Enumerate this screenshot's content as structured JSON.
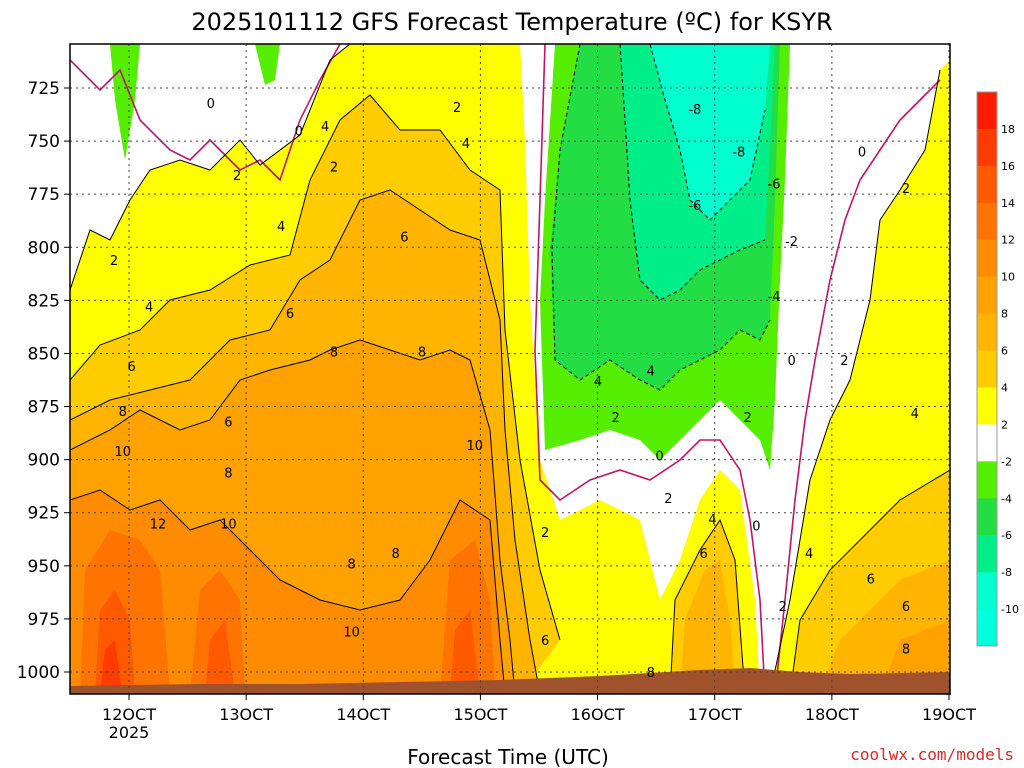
{
  "chart_data": {
    "type": "heatmap",
    "title": "2025101112 GFS Forecast Temperature (ºC) for KSYR",
    "xlabel": "Forecast Time (UTC)",
    "ylabel": "",
    "x_ticks": [
      "12OCT",
      "13OCT",
      "14OCT",
      "15OCT",
      "16OCT",
      "17OCT",
      "18OCT",
      "19OCT"
    ],
    "x_year_label": "2025",
    "y_ticks": [
      725,
      750,
      775,
      800,
      825,
      850,
      875,
      900,
      925,
      950,
      975,
      1000
    ],
    "ylim": [
      1000,
      700
    ],
    "grid": true,
    "colorbar": {
      "levels": [
        18,
        16,
        14,
        12,
        10,
        8,
        6,
        4,
        2,
        -2,
        -4,
        -6,
        -8,
        -10
      ],
      "colors": [
        "#ff1a00",
        "#ff3b00",
        "#ff5a00",
        "#ff7300",
        "#ff8c00",
        "#ffa200",
        "#ffb400",
        "#ffcc00",
        "#ffff00",
        "#ffffff",
        "#55ee00",
        "#22dd44",
        "#00ee88",
        "#00ffcc",
        "#00ffdd"
      ],
      "placement": "right"
    },
    "contour_labels": [
      {
        "text": "0",
        "x": 0.16,
        "p": 732
      },
      {
        "text": "0",
        "x": 0.26,
        "p": 745
      },
      {
        "text": "2",
        "x": 0.19,
        "p": 766
      },
      {
        "text": "4",
        "x": 0.29,
        "p": 743
      },
      {
        "text": "2",
        "x": 0.3,
        "p": 762
      },
      {
        "text": "4",
        "x": 0.24,
        "p": 790
      },
      {
        "text": "2",
        "x": 0.05,
        "p": 806
      },
      {
        "text": "2",
        "x": 0.44,
        "p": 734
      },
      {
        "text": "4",
        "x": 0.45,
        "p": 751
      },
      {
        "text": "6",
        "x": 0.38,
        "p": 795
      },
      {
        "text": "6",
        "x": 0.25,
        "p": 831
      },
      {
        "text": "4",
        "x": 0.09,
        "p": 828
      },
      {
        "text": "6",
        "x": 0.07,
        "p": 856
      },
      {
        "text": "8",
        "x": 0.3,
        "p": 849
      },
      {
        "text": "8",
        "x": 0.4,
        "p": 849
      },
      {
        "text": "6",
        "x": 0.18,
        "p": 882
      },
      {
        "text": "8",
        "x": 0.06,
        "p": 877
      },
      {
        "text": "10",
        "x": 0.06,
        "p": 896
      },
      {
        "text": "8",
        "x": 0.18,
        "p": 906
      },
      {
        "text": "10",
        "x": 0.46,
        "p": 893
      },
      {
        "text": "12",
        "x": 0.1,
        "p": 930
      },
      {
        "text": "10",
        "x": 0.18,
        "p": 930
      },
      {
        "text": "8",
        "x": 0.32,
        "p": 949
      },
      {
        "text": "8",
        "x": 0.37,
        "p": 944
      },
      {
        "text": "10",
        "x": 0.32,
        "p": 981
      },
      {
        "text": "2",
        "x": 0.54,
        "p": 934
      },
      {
        "text": "6",
        "x": 0.54,
        "p": 985
      },
      {
        "text": "8",
        "x": 0.66,
        "p": 1000
      },
      {
        "text": "4",
        "x": 0.6,
        "p": 863
      },
      {
        "text": "2",
        "x": 0.62,
        "p": 880
      },
      {
        "text": "4",
        "x": 0.66,
        "p": 858
      },
      {
        "text": "0",
        "x": 0.67,
        "p": 898
      },
      {
        "text": "2",
        "x": 0.68,
        "p": 918
      },
      {
        "text": "4",
        "x": 0.73,
        "p": 928
      },
      {
        "text": "6",
        "x": 0.72,
        "p": 944
      },
      {
        "text": "0",
        "x": 0.78,
        "p": 931
      },
      {
        "text": "2",
        "x": 0.77,
        "p": 880
      },
      {
        "text": "-8",
        "x": 0.71,
        "p": 735
      },
      {
        "text": "-8",
        "x": 0.76,
        "p": 755
      },
      {
        "text": "-6",
        "x": 0.8,
        "p": 770
      },
      {
        "text": "-6",
        "x": 0.71,
        "p": 780
      },
      {
        "text": "-2",
        "x": 0.82,
        "p": 797
      },
      {
        "text": "-4",
        "x": 0.8,
        "p": 823
      },
      {
        "text": "0",
        "x": 0.9,
        "p": 755
      },
      {
        "text": "2",
        "x": 0.95,
        "p": 772
      },
      {
        "text": "0",
        "x": 0.82,
        "p": 853
      },
      {
        "text": "2",
        "x": 0.88,
        "p": 853
      },
      {
        "text": "4",
        "x": 0.96,
        "p": 878
      },
      {
        "text": "4",
        "x": 0.84,
        "p": 944
      },
      {
        "text": "6",
        "x": 0.91,
        "p": 956
      },
      {
        "text": "2",
        "x": 0.81,
        "p": 969
      },
      {
        "text": "6",
        "x": 0.95,
        "p": 969
      },
      {
        "text": "8",
        "x": 0.95,
        "p": 989
      }
    ],
    "fields_note": "Filled-contour time-height section; colored regions approximated from image."
  },
  "credit": "coolwx.com/models"
}
